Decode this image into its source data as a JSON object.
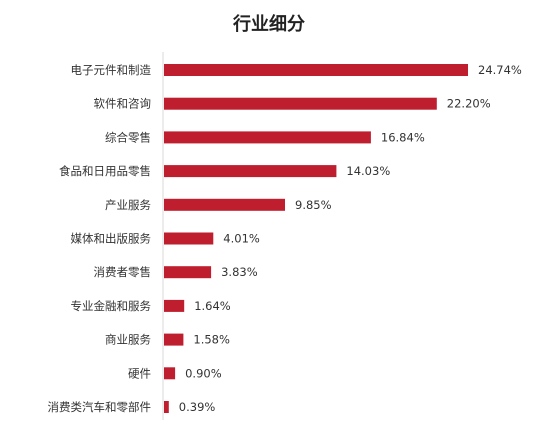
{
  "chart_data": {
    "type": "bar",
    "orientation": "horizontal",
    "title": "行业细分",
    "categories": [
      "电子元件和制造",
      "软件和咨询",
      "综合零售",
      "食品和日用品零售",
      "产业服务",
      "媒体和出版服务",
      "消费者零售",
      "专业金融和服务",
      "商业服务",
      "硬件",
      "消费类汽车和零部件"
    ],
    "values": [
      24.74,
      22.2,
      16.84,
      14.03,
      9.85,
      4.01,
      3.83,
      1.64,
      1.58,
      0.9,
      0.39
    ],
    "value_labels": [
      "24.74%",
      "22.20%",
      "16.84%",
      "14.03%",
      "9.85%",
      "4.01%",
      "3.83%",
      "1.64%",
      "1.58%",
      "0.90%",
      "0.39%"
    ],
    "xlim": [
      0,
      25
    ],
    "grid": false,
    "bar_color": "#be1e2d"
  }
}
